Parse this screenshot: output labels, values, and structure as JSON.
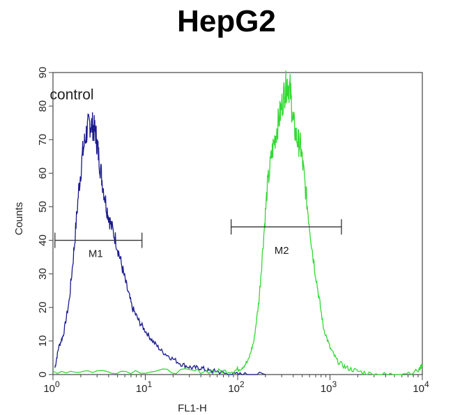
{
  "chart_data": {
    "type": "line",
    "title": "HepG2",
    "xlabel": "FL1-H",
    "ylabel": "Counts",
    "x_scale": "log",
    "xlim": [
      1,
      10000
    ],
    "ylim": [
      0,
      90
    ],
    "x_ticks": [
      {
        "value": 1,
        "base": "10",
        "exp": "0"
      },
      {
        "value": 10,
        "base": "10",
        "exp": "1"
      },
      {
        "value": 100,
        "base": "10",
        "exp": "2"
      },
      {
        "value": 1000,
        "base": "10",
        "exp": "3"
      },
      {
        "value": 10000,
        "base": "10",
        "exp": "4"
      }
    ],
    "y_ticks": [
      0,
      10,
      20,
      30,
      40,
      50,
      60,
      70,
      80,
      90
    ],
    "grid": false,
    "series": [
      {
        "color": "#1a1a8c",
        "points": [
          [
            1.05,
            2
          ],
          [
            1.15,
            8
          ],
          [
            1.3,
            12
          ],
          [
            1.5,
            22
          ],
          [
            1.7,
            38
          ],
          [
            1.9,
            55
          ],
          [
            2.1,
            66
          ],
          [
            2.3,
            72
          ],
          [
            2.5,
            75
          ],
          [
            2.7,
            74
          ],
          [
            2.9,
            72
          ],
          [
            3.1,
            66
          ],
          [
            3.4,
            58
          ],
          [
            3.8,
            50
          ],
          [
            4.2,
            45
          ],
          [
            4.8,
            40
          ],
          [
            5.5,
            33
          ],
          [
            6.3,
            26
          ],
          [
            7.2,
            20
          ],
          [
            8.5,
            16
          ],
          [
            10,
            13
          ],
          [
            12,
            10
          ],
          [
            15,
            7
          ],
          [
            19,
            5
          ],
          [
            25,
            3
          ],
          [
            32,
            2
          ],
          [
            40,
            2
          ],
          [
            50,
            1
          ],
          [
            60,
            1
          ],
          [
            80,
            0
          ],
          [
            120,
            0
          ],
          [
            200,
            0
          ]
        ]
      },
      {
        "color": "#33d933",
        "points": [
          [
            1,
            1
          ],
          [
            3,
            1
          ],
          [
            10,
            1
          ],
          [
            30,
            1
          ],
          [
            60,
            1
          ],
          [
            90,
            1
          ],
          [
            110,
            2
          ],
          [
            130,
            4
          ],
          [
            150,
            10
          ],
          [
            170,
            22
          ],
          [
            190,
            40
          ],
          [
            210,
            56
          ],
          [
            235,
            66
          ],
          [
            260,
            72
          ],
          [
            290,
            78
          ],
          [
            320,
            84
          ],
          [
            345,
            87
          ],
          [
            370,
            85
          ],
          [
            400,
            75
          ],
          [
            440,
            70
          ],
          [
            480,
            68
          ],
          [
            520,
            60
          ],
          [
            580,
            48
          ],
          [
            650,
            36
          ],
          [
            750,
            24
          ],
          [
            850,
            14
          ],
          [
            1000,
            8
          ],
          [
            1200,
            4
          ],
          [
            1500,
            2
          ],
          [
            2000,
            1
          ],
          [
            3000,
            0
          ],
          [
            5000,
            0
          ],
          [
            9000,
            1
          ],
          [
            10000,
            3
          ]
        ]
      }
    ],
    "annotations": [
      {
        "text": "control",
        "x": 1.6,
        "y": 82
      },
      {
        "text": "M1",
        "x": 2.9,
        "y": 35,
        "range": [
          1.05,
          9.2
        ],
        "bar_y": 40
      },
      {
        "text": "M2",
        "x": 300,
        "y": 36,
        "range": [
          85,
          1330
        ],
        "bar_y": 44
      }
    ]
  }
}
